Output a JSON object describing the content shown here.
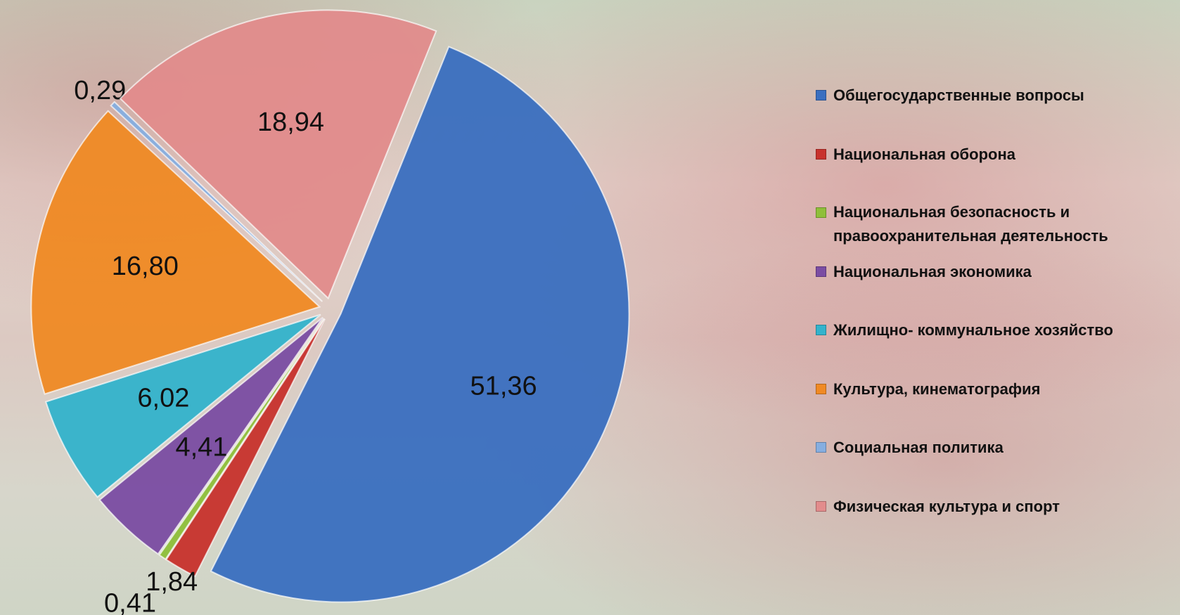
{
  "chart_data": {
    "type": "pie",
    "categories": [
      "Общегосударственные вопросы",
      "Национальная оборона",
      "Национальная безопасность и правоохранительная деятельность",
      "Национальная экономика",
      "Жилищно- коммунальное хозяйство",
      "Культура, кинематография",
      "Социальная политика",
      "Физическая культура и спорт"
    ],
    "values": [
      51.36,
      1.84,
      0.41,
      4.41,
      6.02,
      16.8,
      0.29,
      18.94
    ],
    "value_labels": [
      "51,36",
      "1,84",
      "0,41",
      "4,41",
      "6,02",
      "16,80",
      "0,29",
      "18,94"
    ],
    "colors": [
      "#3a6fc0",
      "#c8322d",
      "#8fbf3a",
      "#7b4da3",
      "#33b3cc",
      "#f08a24",
      "#86aee0",
      "#e28c8c"
    ],
    "legend": "right"
  }
}
